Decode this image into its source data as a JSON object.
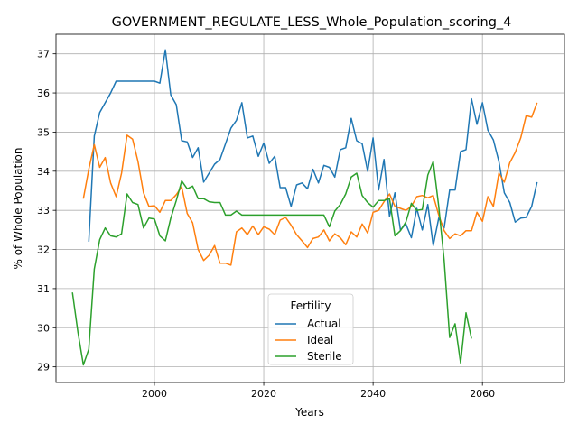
{
  "chart_data": {
    "type": "line",
    "title": "GOVERNMENT_REGULATE_LESS_Whole_Population_scoring_4",
    "xlabel": "Years",
    "ylabel": "% of Whole Population",
    "xlim": [
      1982,
      2075
    ],
    "ylim": [
      28.6,
      37.5
    ],
    "xticks": [
      2000,
      2020,
      2040,
      2060
    ],
    "yticks": [
      29,
      30,
      31,
      32,
      33,
      34,
      35,
      36,
      37
    ],
    "grid": true,
    "legend": {
      "title": "Fertility",
      "position": "bottom-center"
    },
    "series": [
      {
        "name": "Actual",
        "color": "#1f77b4",
        "x": [
          1988,
          1989,
          1990,
          1991,
          1992,
          1993,
          1994,
          1995,
          1996,
          1997,
          1998,
          1999,
          2000,
          2001,
          2002,
          2003,
          2004,
          2005,
          2006,
          2007,
          2008,
          2009,
          2010,
          2011,
          2012,
          2013,
          2014,
          2015,
          2016,
          2017,
          2018,
          2019,
          2020,
          2021,
          2022,
          2023,
          2024,
          2025,
          2026,
          2027,
          2028,
          2029,
          2030,
          2031,
          2032,
          2033,
          2034,
          2035,
          2036,
          2037,
          2038,
          2039,
          2040,
          2041,
          2042,
          2043,
          2044,
          2045,
          2046,
          2047,
          2048,
          2049,
          2050,
          2051,
          2052,
          2053,
          2054,
          2055,
          2056,
          2057,
          2058,
          2059,
          2060,
          2061,
          2062,
          2063,
          2064,
          2065,
          2066,
          2067,
          2068,
          2069,
          2070
        ],
        "values": [
          32.2,
          34.9,
          35.5,
          35.75,
          36.0,
          36.3,
          36.3,
          36.3,
          36.3,
          36.3,
          36.3,
          36.3,
          36.3,
          36.25,
          37.1,
          35.95,
          35.7,
          34.78,
          34.75,
          34.35,
          34.6,
          33.72,
          33.95,
          34.18,
          34.3,
          34.7,
          35.1,
          35.3,
          35.75,
          34.85,
          34.9,
          34.38,
          34.72,
          34.2,
          34.38,
          33.58,
          33.58,
          33.1,
          33.65,
          33.7,
          33.55,
          34.05,
          33.7,
          34.15,
          34.1,
          33.85,
          34.55,
          34.6,
          35.35,
          34.78,
          34.7,
          34.0,
          34.85,
          33.52,
          34.3,
          32.85,
          33.45,
          32.5,
          32.65,
          32.3,
          33.05,
          32.5,
          33.15,
          32.1,
          32.8,
          32.55,
          33.52,
          33.52,
          34.5,
          34.55,
          35.85,
          35.2,
          35.75,
          35.05,
          34.8,
          34.25,
          33.45,
          33.2,
          32.7,
          32.8,
          32.82,
          33.1,
          33.72
        ]
      },
      {
        "name": "Ideal",
        "color": "#ff7f0e",
        "x": [
          1987,
          1988,
          1989,
          1990,
          1991,
          1992,
          1993,
          1994,
          1995,
          1996,
          1997,
          1998,
          1999,
          2000,
          2001,
          2002,
          2003,
          2004,
          2005,
          2006,
          2007,
          2008,
          2009,
          2010,
          2011,
          2012,
          2013,
          2014,
          2015,
          2016,
          2017,
          2018,
          2019,
          2020,
          2021,
          2022,
          2023,
          2024,
          2025,
          2026,
          2027,
          2028,
          2029,
          2030,
          2031,
          2032,
          2033,
          2034,
          2035,
          2036,
          2037,
          2038,
          2039,
          2040,
          2041,
          2042,
          2043,
          2044,
          2045,
          2046,
          2047,
          2048,
          2049,
          2050,
          2051,
          2052,
          2053,
          2054,
          2055,
          2056,
          2057,
          2058,
          2059,
          2060,
          2061,
          2062,
          2063,
          2064,
          2065,
          2066,
          2067,
          2068,
          2069,
          2070
        ],
        "values": [
          33.3,
          34.05,
          34.68,
          34.1,
          34.35,
          33.7,
          33.35,
          33.95,
          34.92,
          34.82,
          34.25,
          33.45,
          33.1,
          33.12,
          32.95,
          33.25,
          33.25,
          33.4,
          33.6,
          32.92,
          32.68,
          32.0,
          31.72,
          31.85,
          32.1,
          31.65,
          31.65,
          31.6,
          32.45,
          32.55,
          32.38,
          32.6,
          32.38,
          32.58,
          32.52,
          32.38,
          32.75,
          32.82,
          32.62,
          32.38,
          32.22,
          32.05,
          32.28,
          32.32,
          32.5,
          32.22,
          32.4,
          32.3,
          32.12,
          32.45,
          32.32,
          32.65,
          32.42,
          32.95,
          33.0,
          33.22,
          33.42,
          33.1,
          33.05,
          33.0,
          33.1,
          33.35,
          33.38,
          33.32,
          33.38,
          32.88,
          32.48,
          32.28,
          32.4,
          32.35,
          32.48,
          32.48,
          32.95,
          32.72,
          33.35,
          33.1,
          33.95,
          33.72,
          34.22,
          34.48,
          34.85,
          35.42,
          35.38,
          35.75
        ]
      },
      {
        "name": "Sterile",
        "color": "#2ca02c",
        "x": [
          1985,
          1986,
          1987,
          1988,
          1989,
          1990,
          1991,
          1992,
          1993,
          1994,
          1995,
          1996,
          1997,
          1998,
          1999,
          2000,
          2001,
          2002,
          2003,
          2004,
          2005,
          2006,
          2007,
          2008,
          2009,
          2010,
          2011,
          2012,
          2013,
          2014,
          2015,
          2016,
          2017,
          2018,
          2019,
          2020,
          2021,
          2022,
          2023,
          2024,
          2025,
          2026,
          2027,
          2028,
          2029,
          2030,
          2031,
          2032,
          2033,
          2034,
          2035,
          2036,
          2037,
          2038,
          2039,
          2040,
          2041,
          2042,
          2043,
          2044,
          2045,
          2046,
          2047,
          2048,
          2049,
          2050,
          2051,
          2052,
          2053,
          2054,
          2055,
          2056,
          2057,
          2058
        ],
        "values": [
          30.9,
          29.9,
          29.05,
          29.45,
          31.5,
          32.25,
          32.55,
          32.35,
          32.32,
          32.4,
          33.42,
          33.2,
          33.15,
          32.55,
          32.8,
          32.78,
          32.35,
          32.22,
          32.8,
          33.25,
          33.75,
          33.55,
          33.62,
          33.3,
          33.3,
          33.22,
          33.2,
          33.2,
          32.88,
          32.88,
          32.98,
          32.88,
          32.88,
          32.88,
          32.88,
          32.88,
          32.88,
          32.88,
          32.88,
          32.88,
          32.88,
          32.88,
          32.88,
          32.88,
          32.88,
          32.88,
          32.88,
          32.58,
          32.98,
          33.15,
          33.42,
          33.85,
          33.95,
          33.38,
          33.2,
          33.08,
          33.25,
          33.25,
          33.3,
          32.35,
          32.48,
          32.7,
          33.18,
          33.0,
          33.02,
          33.9,
          34.25,
          33.1,
          31.72,
          29.75,
          30.1,
          29.1,
          30.38,
          29.72
        ]
      }
    ]
  }
}
